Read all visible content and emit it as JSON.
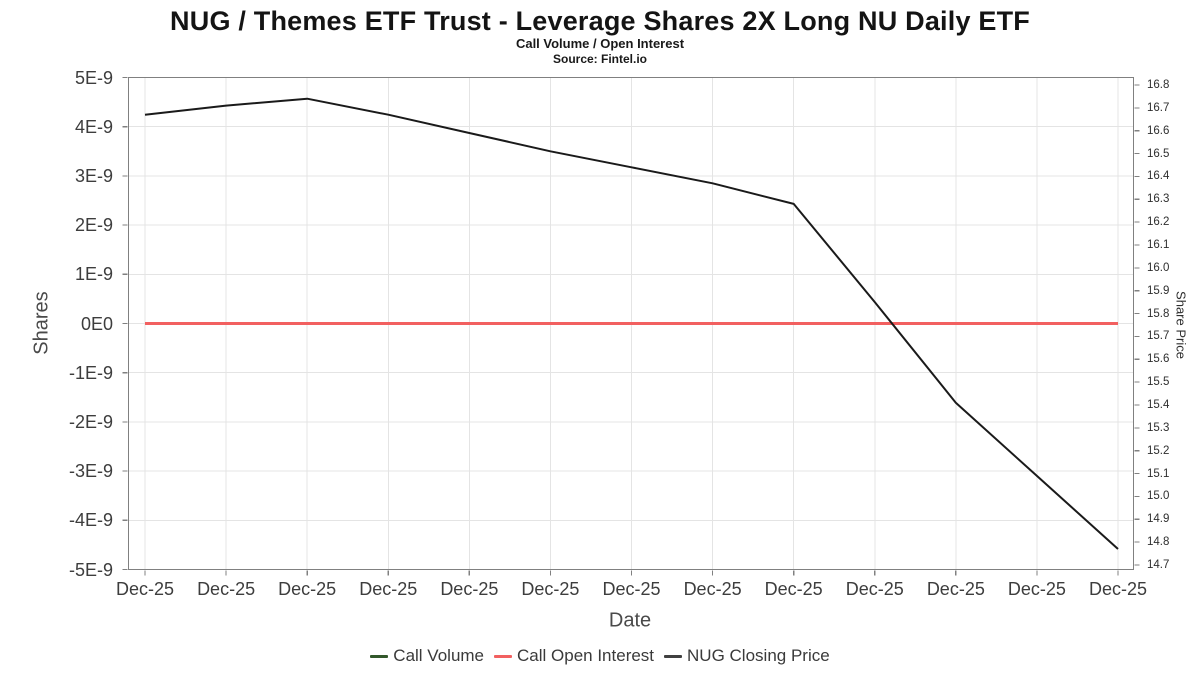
{
  "title": "NUG / Themes ETF Trust - Leverage Shares 2X Long NU Daily ETF",
  "subtitle": "Call Volume / Open Interest",
  "source": "Source: Fintel.io",
  "axes": {
    "left": {
      "label": "Shares",
      "ticks": [
        "5E-9",
        "4E-9",
        "3E-9",
        "2E-9",
        "1E-9",
        "0E0",
        "-1E-9",
        "-2E-9",
        "-3E-9",
        "-4E-9",
        "-5E-9"
      ]
    },
    "right": {
      "label": "Share Price",
      "ticks": [
        "16.8",
        "16.7",
        "16.6",
        "16.5",
        "16.4",
        "16.3",
        "16.2",
        "16.1",
        "16.0",
        "15.9",
        "15.8",
        "15.7",
        "15.6",
        "15.5",
        "15.4",
        "15.3",
        "15.2",
        "15.1",
        "15.0",
        "14.9",
        "14.8",
        "14.7"
      ]
    },
    "x": {
      "label": "Date",
      "ticks": [
        "Dec-25",
        "Dec-25",
        "Dec-25",
        "Dec-25",
        "Dec-25",
        "Dec-25",
        "Dec-25",
        "Dec-25",
        "Dec-25",
        "Dec-25",
        "Dec-25",
        "Dec-25",
        "Dec-25"
      ]
    }
  },
  "legend": [
    {
      "label": "Call Volume",
      "color": "#33582b"
    },
    {
      "label": "Call Open Interest",
      "color": "#f26060"
    },
    {
      "label": "NUG Closing Price",
      "color": "#404040"
    }
  ],
  "colors": {
    "grid": "#e4e4e4",
    "frame": "#808080",
    "tick": "#808080",
    "price_line": "#1a1a1a"
  },
  "chart_data": {
    "type": "line",
    "title": "NUG / Themes ETF Trust - Leverage Shares 2X Long NU Daily ETF",
    "subtitle": "Call Volume / Open Interest",
    "source": "Source: Fintel.io",
    "xlabel": "Date",
    "x_categories": [
      "Dec-25",
      "Dec-25",
      "Dec-25",
      "Dec-25",
      "Dec-25",
      "Dec-25",
      "Dec-25",
      "Dec-25",
      "Dec-25",
      "Dec-25",
      "Dec-25",
      "Dec-25",
      "Dec-25"
    ],
    "grid": true,
    "legend_position": "bottom",
    "left_axis": {
      "title": "Shares",
      "min_label": "-5E-9",
      "max_label": "5E-9",
      "tick_step_label": "1E-9",
      "min": -5e-09,
      "max": 5e-09
    },
    "right_axis": {
      "title": "Share Price",
      "min": 14.7,
      "max": 16.8,
      "tick_step": 0.1
    },
    "series": [
      {
        "name": "Call Volume",
        "axis": "left",
        "color": "#33582b",
        "width": 3,
        "values": [
          0,
          0,
          0,
          0,
          0,
          0,
          0,
          0,
          0,
          0,
          0,
          0,
          0
        ]
      },
      {
        "name": "Call Open Interest",
        "axis": "left",
        "color": "#f26060",
        "width": 3,
        "values": [
          0,
          0,
          0,
          0,
          0,
          0,
          0,
          0,
          0,
          0,
          0,
          0,
          0
        ]
      },
      {
        "name": "NUG Closing Price",
        "axis": "right",
        "color": "#1a1a1a",
        "width": 2,
        "values": [
          16.67,
          16.71,
          16.74,
          16.67,
          16.59,
          16.51,
          16.44,
          16.37,
          16.28,
          15.85,
          15.41,
          15.09,
          14.77
        ]
      }
    ]
  }
}
